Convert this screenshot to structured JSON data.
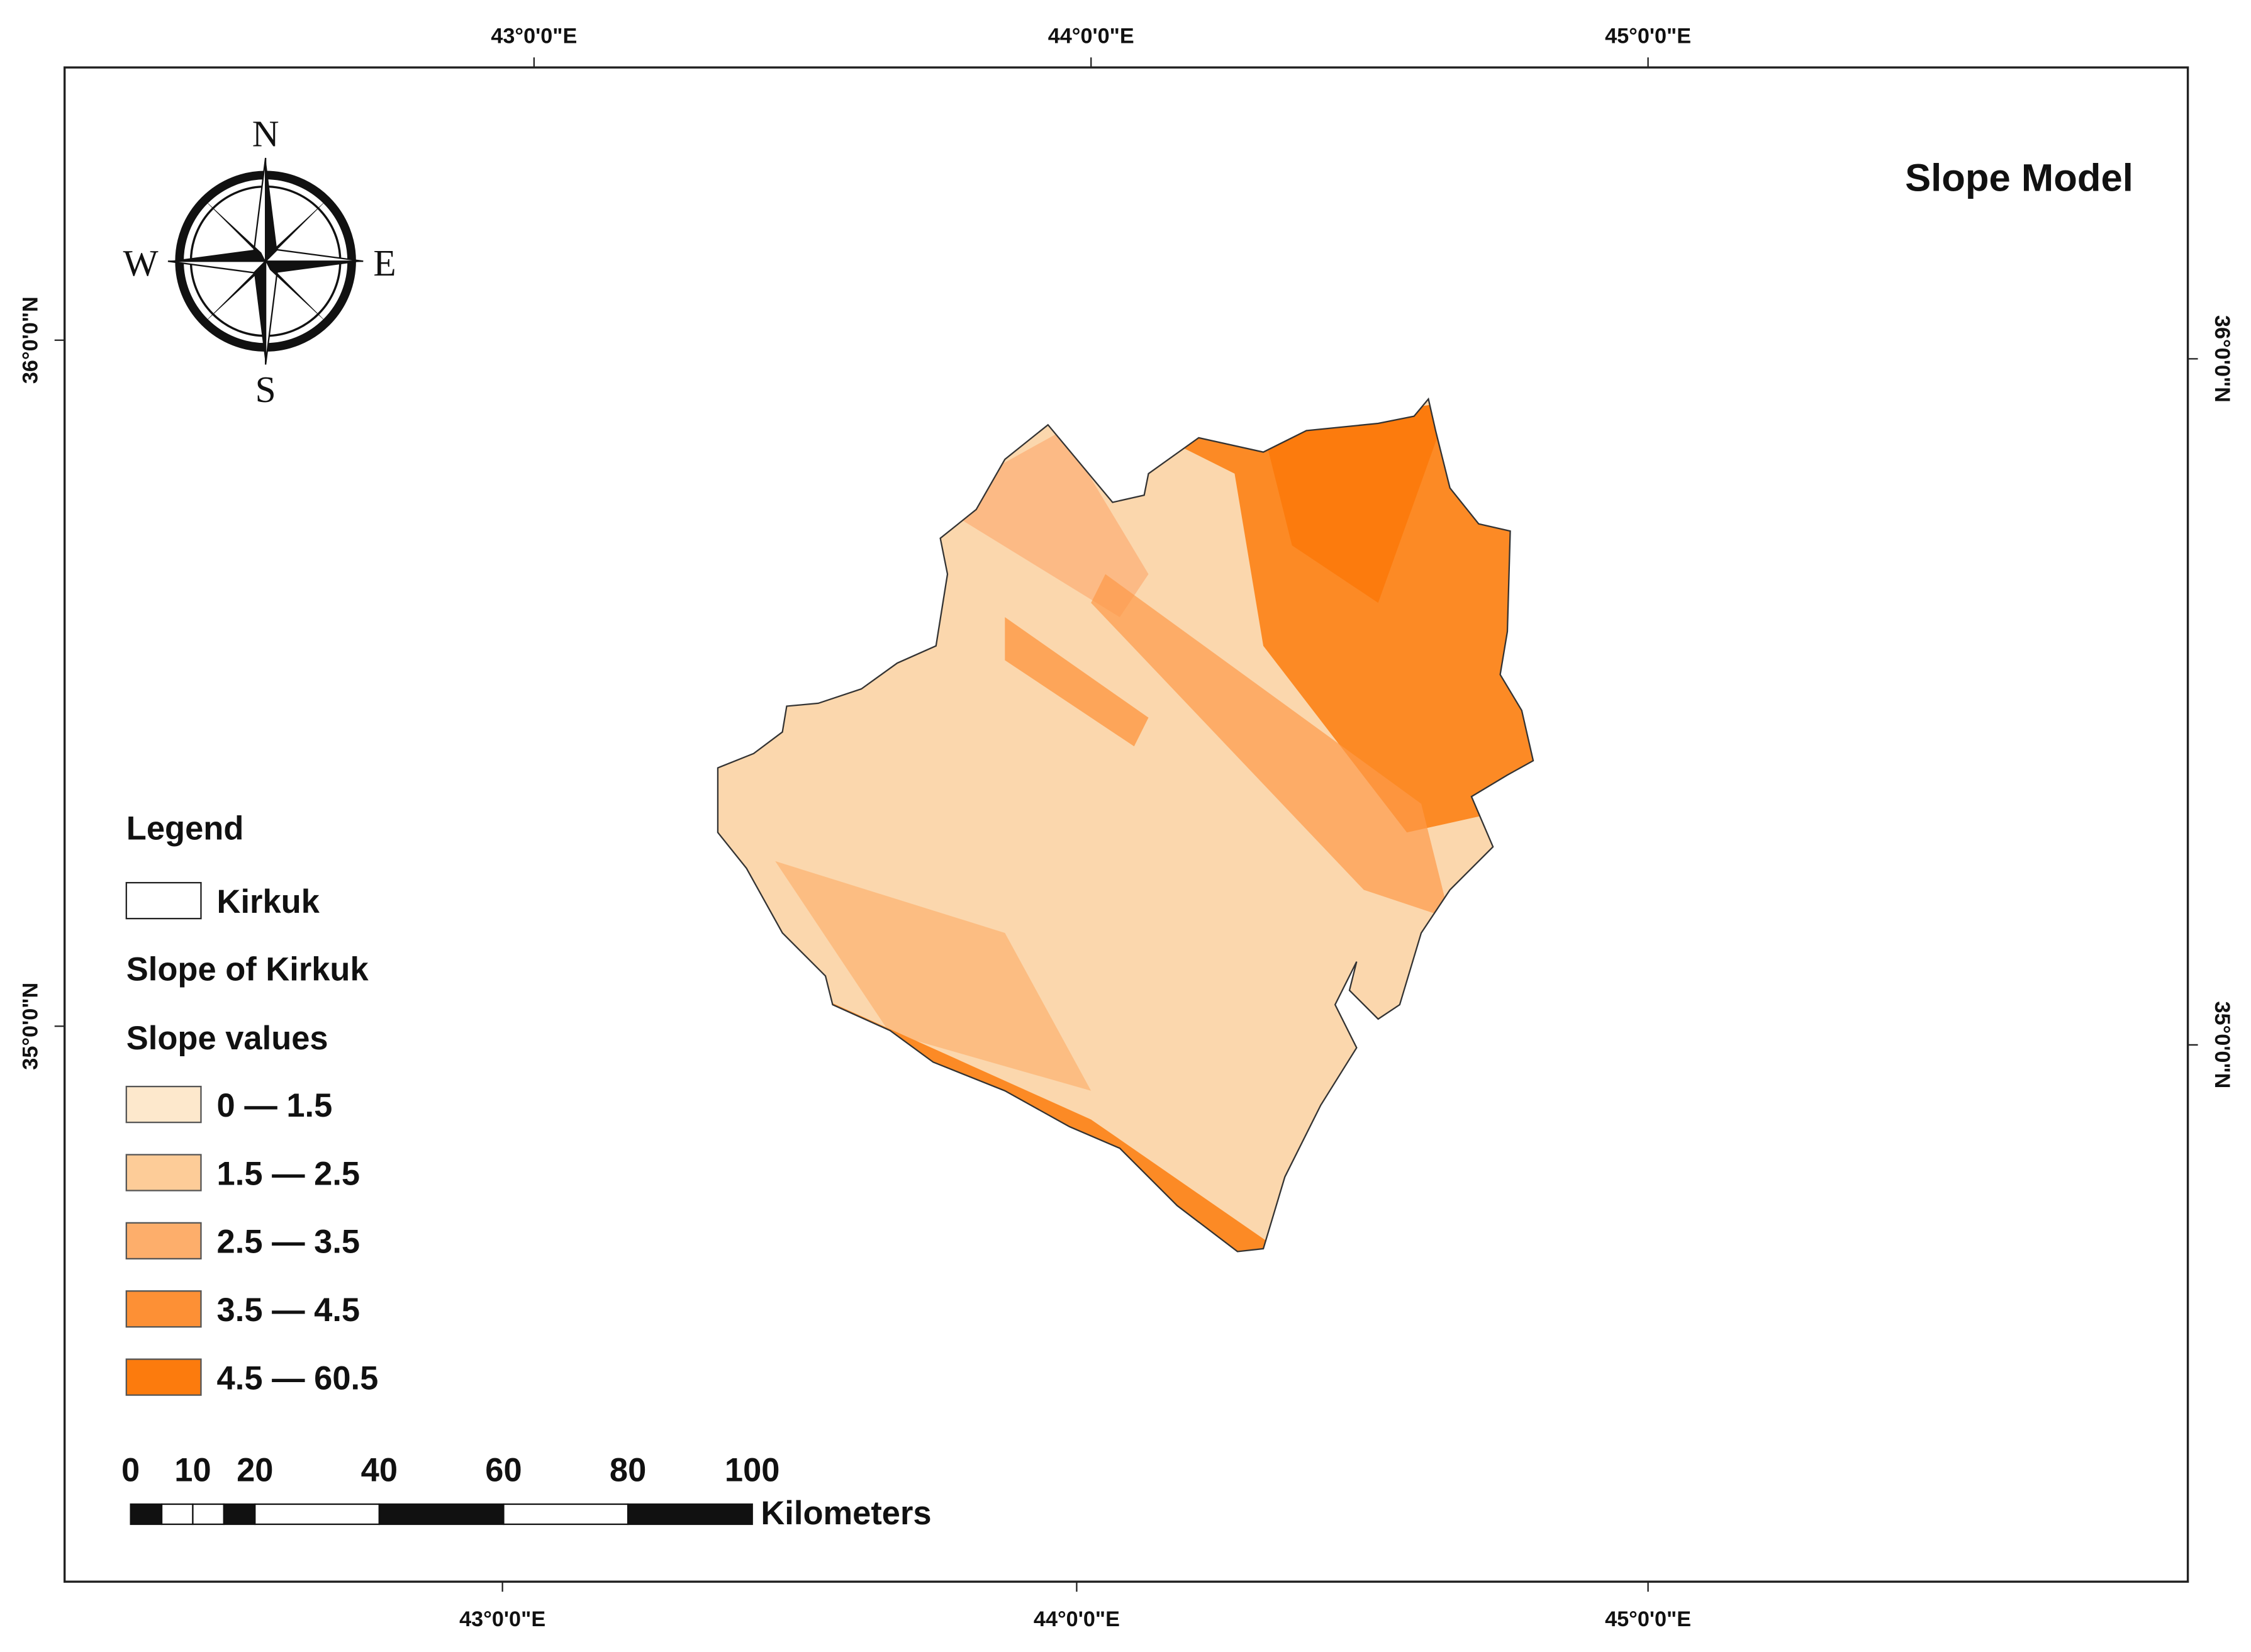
{
  "title": "Slope Model",
  "graticule": {
    "top": [
      "43°0'0\"E",
      "44°0'0\"E",
      "45°0'0\"E"
    ],
    "bottom": [
      "43°0'0\"E",
      "44°0'0\"E",
      "45°0'0\"E"
    ],
    "left": [
      "36°0'0\"N",
      "35°0'0\"N"
    ],
    "right": [
      "36°0'0\"N",
      "35°0'0\"N"
    ]
  },
  "compass": {
    "n": "N",
    "s": "S",
    "e": "E",
    "w": "W"
  },
  "legend": {
    "title": "Legend",
    "boundary": "Kirkuk",
    "layer": "Slope of Kirkuk",
    "field": "Slope values",
    "classes": [
      {
        "label": "0 — 1.5",
        "color": "#fde8cc"
      },
      {
        "label": "1.5 — 2.5",
        "color": "#fdcc98"
      },
      {
        "label": "2.5 — 3.5",
        "color": "#fdae6b"
      },
      {
        "label": "3.5 — 4.5",
        "color": "#fd9035"
      },
      {
        "label": "4.5 — 60.5",
        "color": "#fc7b0d"
      }
    ]
  },
  "scale_bar": {
    "ticks": [
      0,
      10,
      20,
      40,
      60,
      80,
      100
    ],
    "unit": "Kilometers"
  }
}
